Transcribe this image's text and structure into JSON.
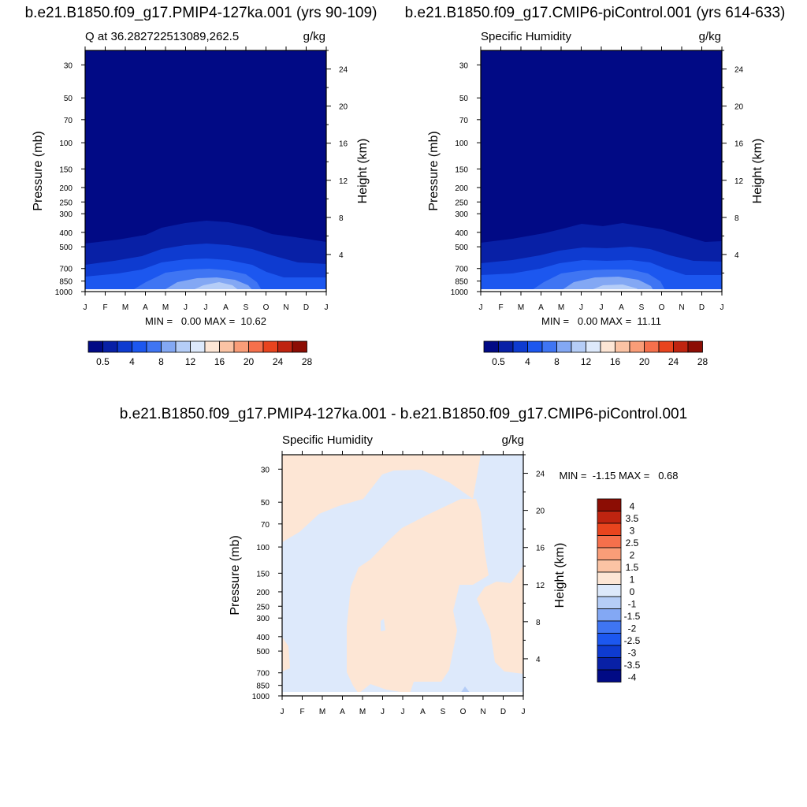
{
  "chart_data": [
    {
      "type": "heatmap",
      "title": "b.e21.B1850.f09_g17.PMIP4-127ka.001 (yrs 90-109)",
      "left_label": "Q at 36.282722513089,262.5",
      "right_label": "g/kg",
      "ylabel": "Pressure (mb)",
      "ylabel_right": "Height (km)",
      "x_ticks": [
        "J",
        "F",
        "M",
        "A",
        "M",
        "J",
        "J",
        "A",
        "S",
        "O",
        "N",
        "D",
        "J"
      ],
      "pressure_ticks": [
        30,
        50,
        70,
        100,
        150,
        200,
        250,
        300,
        400,
        500,
        700,
        850,
        1000
      ],
      "height_ticks": [
        24,
        20,
        16,
        12,
        8,
        4
      ],
      "stats_text": "MIN =   0.00 MAX =  10.62",
      "min": 0.0,
      "max": 10.62,
      "colorbar_labels": [
        "0.5",
        "4",
        "8",
        "12",
        "16",
        "20",
        "24",
        "28"
      ],
      "colorbar_values": [
        0.5,
        2,
        4,
        6,
        8,
        10,
        12,
        14,
        16,
        18,
        20,
        22,
        24,
        26,
        28
      ]
    },
    {
      "type": "heatmap",
      "title": "b.e21.B1850.f09_g17.CMIP6-piControl.001 (yrs 614-633)",
      "left_label": "Specific Humidity",
      "right_label": "g/kg",
      "ylabel": "Pressure (mb)",
      "ylabel_right": "Height (km)",
      "x_ticks": [
        "J",
        "F",
        "M",
        "A",
        "M",
        "J",
        "J",
        "A",
        "S",
        "O",
        "N",
        "D",
        "J"
      ],
      "pressure_ticks": [
        30,
        50,
        70,
        100,
        150,
        200,
        250,
        300,
        400,
        500,
        700,
        850,
        1000
      ],
      "height_ticks": [
        24,
        20,
        16,
        12,
        8,
        4
      ],
      "stats_text": "MIN =   0.00 MAX =  11.11",
      "min": 0.0,
      "max": 11.11,
      "colorbar_labels": [
        "0.5",
        "4",
        "8",
        "12",
        "16",
        "20",
        "24",
        "28"
      ],
      "colorbar_values": [
        0.5,
        2,
        4,
        6,
        8,
        10,
        12,
        14,
        16,
        18,
        20,
        22,
        24,
        26,
        28
      ]
    },
    {
      "type": "heatmap",
      "title": "b.e21.B1850.f09_g17.PMIP4-127ka.001 - b.e21.B1850.f09_g17.CMIP6-piControl.001",
      "left_label": "Specific Humidity",
      "right_label": "g/kg",
      "ylabel": "Pressure (mb)",
      "ylabel_right": "Height (km)",
      "x_ticks": [
        "J",
        "F",
        "M",
        "A",
        "M",
        "J",
        "J",
        "A",
        "S",
        "O",
        "N",
        "D",
        "J"
      ],
      "pressure_ticks": [
        30,
        50,
        70,
        100,
        150,
        200,
        250,
        300,
        400,
        500,
        700,
        850,
        1000
      ],
      "height_ticks": [
        24,
        20,
        16,
        12,
        8,
        4
      ],
      "stats_text": "MIN =  -1.15 MAX =   0.68",
      "min": -1.15,
      "max": 0.68,
      "colorbar_labels": [
        "4",
        "3.5",
        "3",
        "2.5",
        "2",
        "1.5",
        "1",
        "0",
        "-1",
        "-1.5",
        "-2",
        "-2.5",
        "-3",
        "-3.5",
        "-4"
      ]
    }
  ],
  "palettes": {
    "abs": [
      "#010a85",
      "#0820a6",
      "#0e3bd0",
      "#1c57ef",
      "#3f75f3",
      "#83a8f4",
      "#b5cdf7",
      "#dde9fb",
      "#fde6d5",
      "#fbc3a4",
      "#f99d78",
      "#f5704c",
      "#e8441e",
      "#bf2410",
      "#8c0d04"
    ],
    "diff": [
      "#8c0d04",
      "#bf2410",
      "#e8441e",
      "#f5704c",
      "#f99d78",
      "#fbc3a4",
      "#fde6d5",
      "#dde9fb",
      "#b5cdf7",
      "#83a8f4",
      "#3f75f3",
      "#1c57ef",
      "#0e3bd0",
      "#0820a6",
      "#010a85"
    ]
  }
}
